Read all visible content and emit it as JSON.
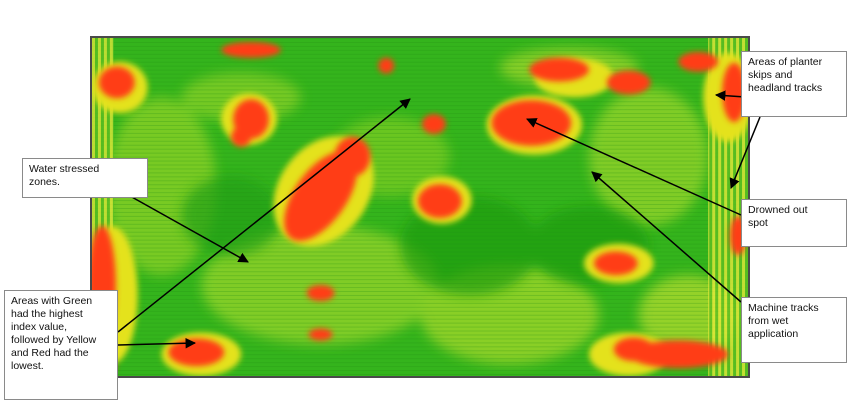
{
  "image": {
    "subject": "aerial-crop-vegetation-index-map",
    "colors": {
      "healthy": "#2fb21a",
      "moderate": "#d9e61c",
      "stressed": "#ff3d12",
      "border": "#4a4a4a"
    }
  },
  "callouts": {
    "water_stressed": [
      "Water stressed",
      "zones."
    ],
    "index_legend": [
      "Areas with Green",
      "had the highest",
      "index value,",
      "followed by Yellow",
      "and Red had the",
      "lowest."
    ],
    "planter_skips": [
      "Areas of planter",
      "skips and",
      "headland tracks"
    ],
    "drowned_out": [
      "Drowned out",
      "spot"
    ],
    "machine_tracks": [
      "Machine tracks",
      "from wet",
      "application"
    ]
  }
}
